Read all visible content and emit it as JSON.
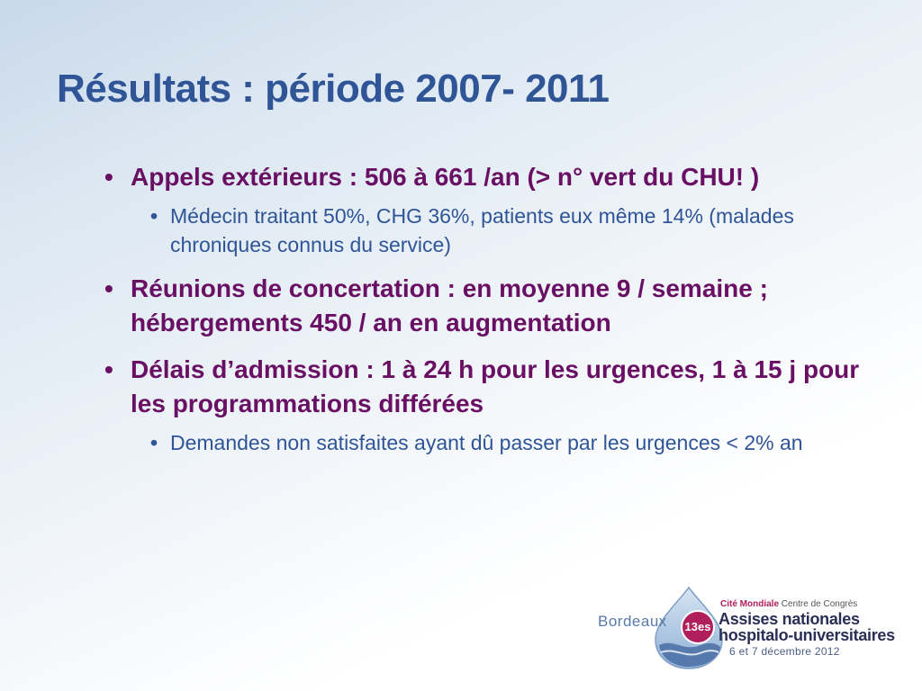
{
  "slide": {
    "title": "Résultats : période 2007- 2011",
    "bullets": [
      {
        "text": "Appels extérieurs : 506 à 661 /an (> n° vert du CHU! )",
        "sub": [
          "Médecin traitant 50%, CHG 36%, patients eux même 14% (malades chroniques connus du service)"
        ]
      },
      {
        "text": "Réunions de concertation : en moyenne 9 / semaine ; hébergements 450 / an en augmentation",
        "sub": []
      },
      {
        "text": "Délais d’admission : 1 à 24 h pour les urgences, 1 à 15 j pour les programmations différées",
        "sub": [
          "Demandes non satisfaites ayant dû passer par les urgences < 2% an"
        ]
      }
    ]
  },
  "logo": {
    "city": "Bordeaux",
    "badge": "13es",
    "venue_bold": "Cité Mondiale",
    "venue_rest": "Centre de Congrès",
    "line1": "Assises nationales",
    "line2": "hospitalo-universitaires",
    "date": "6 et 7 décembre 2012"
  },
  "colors": {
    "title": "#2f5597",
    "level1": "#6a1064",
    "level2": "#2f5597",
    "badge": "#b01f5b"
  }
}
